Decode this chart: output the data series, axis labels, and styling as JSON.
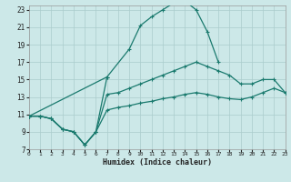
{
  "xlabel": "Humidex (Indice chaleur)",
  "bg_color": "#cce8e8",
  "grid_color": "#aacccc",
  "line_color": "#1a7a6e",
  "xlim": [
    0,
    23
  ],
  "ylim": [
    7,
    23.5
  ],
  "xticks": [
    0,
    1,
    2,
    3,
    4,
    5,
    6,
    7,
    8,
    9,
    10,
    11,
    12,
    13,
    14,
    15,
    16,
    17,
    18,
    19,
    20,
    21,
    22,
    23
  ],
  "yticks": [
    7,
    9,
    11,
    13,
    15,
    17,
    19,
    21,
    23
  ],
  "series1_x": [
    0,
    1,
    2,
    3,
    4,
    5,
    6,
    7
  ],
  "series1_y": [
    10.8,
    10.8,
    10.5,
    9.3,
    9.0,
    7.5,
    9.0,
    15.3
  ],
  "series2_x": [
    0,
    7,
    9,
    10,
    11,
    12,
    13,
    14,
    15,
    16,
    17
  ],
  "series2_y": [
    10.8,
    15.3,
    18.5,
    21.2,
    22.2,
    23.0,
    23.8,
    24.0,
    23.0,
    20.5,
    17.0
  ],
  "series3_x": [
    0,
    1,
    2,
    3,
    4,
    5,
    6,
    7,
    8,
    9,
    10,
    11,
    12,
    13,
    14,
    15,
    16,
    17,
    18,
    19,
    20,
    21,
    22,
    23
  ],
  "series3_y": [
    10.8,
    10.8,
    10.5,
    9.3,
    9.0,
    7.5,
    9.0,
    13.3,
    13.5,
    14.0,
    14.5,
    15.0,
    15.5,
    16.0,
    16.5,
    17.0,
    16.5,
    16.0,
    15.5,
    14.5,
    14.5,
    15.0,
    15.0,
    13.5
  ],
  "series4_x": [
    0,
    1,
    2,
    3,
    4,
    5,
    6,
    7,
    8,
    9,
    10,
    11,
    12,
    13,
    14,
    15,
    16,
    17,
    18,
    19,
    20,
    21,
    22,
    23
  ],
  "series4_y": [
    10.8,
    10.8,
    10.5,
    9.3,
    9.0,
    7.5,
    9.0,
    11.5,
    11.8,
    12.0,
    12.3,
    12.5,
    12.8,
    13.0,
    13.3,
    13.5,
    13.3,
    13.0,
    12.8,
    12.7,
    13.0,
    13.5,
    14.0,
    13.5
  ]
}
